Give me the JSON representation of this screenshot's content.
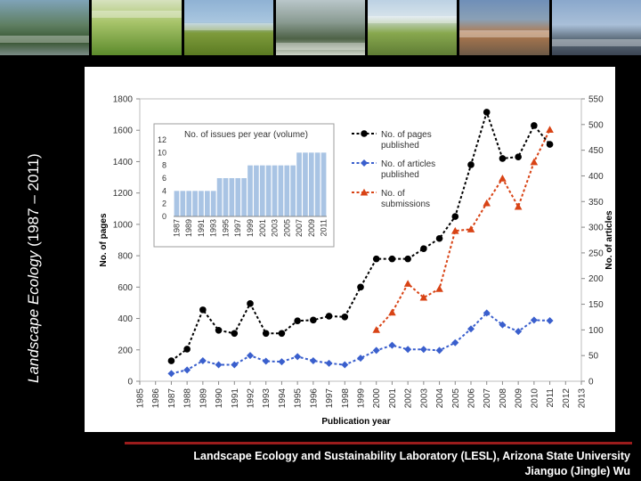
{
  "slide": {
    "side_title_italic": "Landscape Ecology",
    "side_title_range": " (1987 – 2011)",
    "footer_line1": "Landscape Ecology and Sustainability Laboratory (LESL), Arizona State University",
    "footer_line2": "Jianguo (Jingle) Wu",
    "colors": {
      "background": "#000000",
      "accent_line": "#9b1c1c"
    }
  },
  "chart_data": {
    "type": "line",
    "x": [
      1987,
      1988,
      1989,
      1990,
      1991,
      1992,
      1993,
      1994,
      1995,
      1996,
      1997,
      1998,
      1999,
      2000,
      2001,
      2002,
      2003,
      2004,
      2005,
      2006,
      2007,
      2008,
      2009,
      2010,
      2011
    ],
    "x_ticks": [
      "1985",
      "1986",
      "1987",
      "1988",
      "1989",
      "1990",
      "1991",
      "1992",
      "1993",
      "1994",
      "1995",
      "1996",
      "1997",
      "1998",
      "1999",
      "2000",
      "2001",
      "2002",
      "2003",
      "2004",
      "2005",
      "2006",
      "2007",
      "2008",
      "2009",
      "2010",
      "2011",
      "2012",
      "2013"
    ],
    "xlim": [
      1985,
      2013
    ],
    "xlabel": "Publication year",
    "ylabel_left": "No. of pages",
    "ylabel_right": "No. of articles",
    "ylim_left": [
      0,
      1800
    ],
    "yticks_left": [
      "0",
      "200",
      "400",
      "600",
      "800",
      "1000",
      "1200",
      "1400",
      "1600",
      "1800"
    ],
    "ylim_right": [
      0,
      550
    ],
    "yticks_right": [
      "0",
      "50",
      "100",
      "150",
      "200",
      "250",
      "300",
      "350",
      "400",
      "450",
      "500",
      "550"
    ],
    "series": [
      {
        "name": "No. of pages published",
        "axis": "left",
        "color": "#000000",
        "x": [
          1987,
          1988,
          1989,
          1990,
          1991,
          1992,
          1993,
          1994,
          1995,
          1996,
          1997,
          1998,
          1999,
          2000,
          2001,
          2002,
          2003,
          2004,
          2005,
          2006,
          2007,
          2008,
          2009,
          2010,
          2011
        ],
        "values": [
          130,
          205,
          455,
          325,
          305,
          495,
          305,
          305,
          385,
          390,
          415,
          410,
          600,
          780,
          780,
          780,
          845,
          910,
          1050,
          1380,
          1715,
          1420,
          1430,
          1630,
          1510
        ]
      },
      {
        "name": "No. of articles published",
        "axis": "right",
        "color": "#3a5fcd",
        "x": [
          1987,
          1988,
          1989,
          1990,
          1991,
          1992,
          1993,
          1994,
          1995,
          1996,
          1997,
          1998,
          1999,
          2000,
          2001,
          2002,
          2003,
          2004,
          2005,
          2006,
          2007,
          2008,
          2009,
          2010,
          2011
        ],
        "values": [
          15,
          22,
          40,
          32,
          32,
          50,
          39,
          38,
          48,
          40,
          35,
          32,
          45,
          60,
          70,
          62,
          62,
          60,
          75,
          102,
          133,
          110,
          97,
          119,
          118
        ]
      },
      {
        "name": "No. of submissions",
        "axis": "right",
        "color": "#d84315",
        "x": [
          2000,
          2001,
          2002,
          2003,
          2004,
          2005,
          2006,
          2007,
          2008,
          2009,
          2010,
          2011
        ],
        "values": [
          100,
          134,
          190,
          163,
          180,
          293,
          296,
          347,
          395,
          340,
          427,
          490
        ]
      }
    ],
    "inset": {
      "type": "bar",
      "title": "No. of issues per year (volume)",
      "categories": [
        "1987",
        "1988",
        "1989",
        "1990",
        "1991",
        "1992",
        "1993",
        "1994",
        "1995",
        "1996",
        "1997",
        "1998",
        "1999",
        "2000",
        "2001",
        "2002",
        "2003",
        "2004",
        "2005",
        "2006",
        "2007",
        "2008",
        "2009",
        "2010",
        "2011"
      ],
      "values": [
        4,
        4,
        4,
        4,
        4,
        4,
        4,
        6,
        6,
        6,
        6,
        6,
        8,
        8,
        8,
        8,
        8,
        8,
        8,
        8,
        10,
        10,
        10,
        10,
        10
      ],
      "x_tick_labels": [
        "1987",
        "1989",
        "1991",
        "1993",
        "1995",
        "1997",
        "1999",
        "2001",
        "2003",
        "2005",
        "2007",
        "2009",
        "2011"
      ],
      "ylim": [
        0,
        12
      ],
      "yticks": [
        "0",
        "2",
        "4",
        "6",
        "8",
        "10",
        "12"
      ],
      "bar_color": "#a9c4e4"
    },
    "legend": [
      {
        "label_lines": [
          "No. of pages",
          "published"
        ],
        "color": "#000000",
        "marker": "circle"
      },
      {
        "label_lines": [
          "No. of articles",
          "published"
        ],
        "color": "#3a5fcd",
        "marker": "diamond"
      },
      {
        "label_lines": [
          "No. of",
          "submissions"
        ],
        "color": "#d84315",
        "marker": "triangle"
      }
    ]
  }
}
